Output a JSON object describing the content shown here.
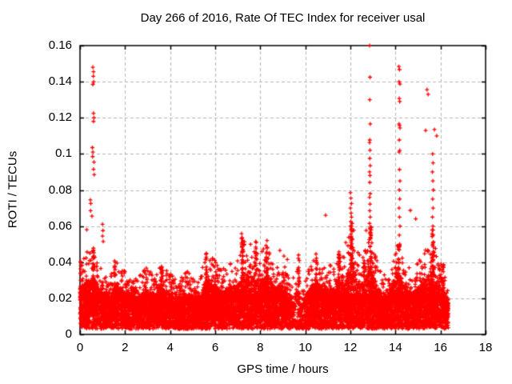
{
  "chart_data": {
    "type": "scatter",
    "title": "Day 266 of 2016, Rate Of TEC Index for receiver usal",
    "xlabel": "GPS time / hours",
    "ylabel": "ROTI / TECUs",
    "xlim": [
      0,
      18
    ],
    "ylim": [
      0,
      0.16
    ],
    "xticks": {
      "values": [
        0,
        2,
        4,
        6,
        8,
        10,
        12,
        14,
        16,
        18
      ],
      "labels": [
        "0",
        "2",
        "4",
        "6",
        "8",
        "10",
        "12",
        "14",
        "16",
        "18"
      ]
    },
    "yticks": {
      "values": [
        0,
        0.02,
        0.04,
        0.06,
        0.08,
        0.1,
        0.12,
        0.14,
        0.16
      ],
      "labels": [
        "0",
        "0.02",
        "0.04",
        "0.06",
        "0.08",
        "0.1",
        "0.12",
        "0.14",
        "0.16"
      ]
    },
    "grid": {
      "on": true,
      "style": "dashed",
      "color": "#b5b5b5"
    },
    "border_color": "#000000",
    "marker": "plus",
    "marker_color": "#ff0000",
    "marker_size": 5,
    "band": {
      "x_start": 0.0,
      "x_end": 16.35,
      "n_points": 13000,
      "y_floor": 0.003,
      "solid_top": 0.022,
      "seed": 20160266,
      "envelope": [
        [
          0.0,
          0.04
        ],
        [
          0.3,
          0.046
        ],
        [
          0.6,
          0.048
        ],
        [
          1.0,
          0.034
        ],
        [
          1.3,
          0.03
        ],
        [
          1.6,
          0.042
        ],
        [
          2.0,
          0.036
        ],
        [
          2.3,
          0.03
        ],
        [
          2.7,
          0.034
        ],
        [
          3.0,
          0.038
        ],
        [
          3.3,
          0.032
        ],
        [
          3.6,
          0.04
        ],
        [
          4.0,
          0.034
        ],
        [
          4.3,
          0.03
        ],
        [
          4.7,
          0.036
        ],
        [
          5.0,
          0.032
        ],
        [
          5.3,
          0.03
        ],
        [
          5.6,
          0.046
        ],
        [
          6.0,
          0.042
        ],
        [
          6.3,
          0.036
        ],
        [
          6.6,
          0.04
        ],
        [
          7.0,
          0.042
        ],
        [
          7.3,
          0.052
        ],
        [
          7.6,
          0.055
        ],
        [
          8.0,
          0.044
        ],
        [
          8.3,
          0.052
        ],
        [
          8.6,
          0.04
        ],
        [
          9.0,
          0.042
        ],
        [
          9.3,
          0.03
        ],
        [
          9.6,
          0.04
        ],
        [
          9.8,
          0.03
        ],
        [
          10.0,
          0.032
        ],
        [
          10.2,
          0.04
        ],
        [
          10.5,
          0.045
        ],
        [
          10.8,
          0.038
        ],
        [
          11.0,
          0.04
        ],
        [
          11.3,
          0.036
        ],
        [
          11.6,
          0.046
        ],
        [
          11.9,
          0.055
        ],
        [
          12.1,
          0.062
        ],
        [
          12.3,
          0.046
        ],
        [
          12.6,
          0.044
        ],
        [
          12.9,
          0.06
        ],
        [
          13.1,
          0.044
        ],
        [
          13.4,
          0.034
        ],
        [
          13.7,
          0.032
        ],
        [
          14.0,
          0.05
        ],
        [
          14.2,
          0.048
        ],
        [
          14.5,
          0.038
        ],
        [
          14.8,
          0.036
        ],
        [
          15.0,
          0.04
        ],
        [
          15.3,
          0.046
        ],
        [
          15.6,
          0.058
        ],
        [
          15.9,
          0.044
        ],
        [
          16.1,
          0.038
        ],
        [
          16.35,
          0.03
        ]
      ],
      "gap": {
        "x_start": 9.35,
        "x_end": 10.0,
        "keep": 0.3,
        "y_above": 0.008
      }
    },
    "streaks": [
      [
        0.6,
        0.048,
        60
      ],
      [
        1.55,
        0.042,
        35
      ],
      [
        3.6,
        0.04,
        30
      ],
      [
        5.6,
        0.046,
        35
      ],
      [
        6.0,
        0.042,
        30
      ],
      [
        7.2,
        0.056,
        40
      ],
      [
        7.8,
        0.051,
        30
      ],
      [
        8.3,
        0.052,
        35
      ],
      [
        9.7,
        0.044,
        25
      ],
      [
        10.5,
        0.045,
        30
      ],
      [
        11.5,
        0.046,
        30
      ],
      [
        12.05,
        0.062,
        45
      ],
      [
        12.6,
        0.045,
        30
      ],
      [
        12.9,
        0.06,
        50
      ],
      [
        13.1,
        0.044,
        25
      ],
      [
        14.15,
        0.05,
        45
      ],
      [
        15.65,
        0.058,
        50
      ],
      [
        16.1,
        0.04,
        25
      ]
    ],
    "outliers": [
      [
        0.57,
        0.148
      ],
      [
        0.6,
        0.1455
      ],
      [
        0.59,
        0.143
      ],
      [
        0.61,
        0.14
      ],
      [
        0.57,
        0.1385
      ],
      [
        0.6,
        0.1225
      ],
      [
        0.62,
        0.12
      ],
      [
        0.6,
        0.118
      ],
      [
        0.55,
        0.1035
      ],
      [
        0.57,
        0.101
      ],
      [
        0.56,
        0.0985
      ],
      [
        0.62,
        0.0955
      ],
      [
        0.6,
        0.0915
      ],
      [
        0.63,
        0.0885
      ],
      [
        0.46,
        0.0745
      ],
      [
        0.48,
        0.0725
      ],
      [
        0.47,
        0.0685
      ],
      [
        0.53,
        0.0655
      ],
      [
        0.3,
        0.058
      ],
      [
        1.0,
        0.061
      ],
      [
        1.02,
        0.0575
      ],
      [
        1.0,
        0.0545
      ],
      [
        1.03,
        0.0515
      ],
      [
        0.02,
        0.04
      ],
      [
        0.04,
        0.038
      ],
      [
        0.02,
        0.034
      ],
      [
        0.03,
        0.03
      ],
      [
        0.02,
        0.0265
      ],
      [
        0.05,
        0.024
      ],
      [
        7.17,
        0.0558
      ],
      [
        7.2,
        0.0536
      ],
      [
        7.8,
        0.0514
      ],
      [
        8.3,
        0.052
      ],
      [
        8.87,
        0.0465
      ],
      [
        9.05,
        0.0434
      ],
      [
        9.2,
        0.0415
      ],
      [
        9.7,
        0.044
      ],
      [
        10.9,
        0.066
      ],
      [
        12.7,
        0.0576
      ],
      [
        14.66,
        0.0687
      ],
      [
        14.9,
        0.064
      ],
      [
        12.0,
        0.0785
      ],
      [
        12.02,
        0.0755
      ],
      [
        12.05,
        0.0725
      ],
      [
        12.0,
        0.07
      ],
      [
        12.03,
        0.0672
      ],
      [
        12.05,
        0.065
      ],
      [
        12.02,
        0.0625
      ],
      [
        12.0,
        0.06
      ],
      [
        12.04,
        0.0578
      ],
      [
        12.02,
        0.0555
      ],
      [
        12.05,
        0.0532
      ],
      [
        12.03,
        0.051
      ],
      [
        12.85,
        0.16
      ],
      [
        12.87,
        0.1425
      ],
      [
        12.86,
        0.13
      ],
      [
        12.88,
        0.1166
      ],
      [
        12.86,
        0.1077
      ],
      [
        12.85,
        0.1063
      ],
      [
        12.87,
        0.102
      ],
      [
        12.86,
        0.0975
      ],
      [
        12.88,
        0.0935
      ],
      [
        12.85,
        0.09
      ],
      [
        12.87,
        0.088
      ],
      [
        12.86,
        0.0842
      ],
      [
        12.88,
        0.078
      ],
      [
        12.85,
        0.076
      ],
      [
        12.87,
        0.0722
      ],
      [
        12.86,
        0.0685
      ],
      [
        12.88,
        0.065
      ],
      [
        12.85,
        0.0615
      ],
      [
        12.87,
        0.0585
      ],
      [
        12.86,
        0.056
      ],
      [
        14.15,
        0.1484
      ],
      [
        14.18,
        0.1467
      ],
      [
        14.16,
        0.14
      ],
      [
        14.2,
        0.1387
      ],
      [
        14.17,
        0.1307
      ],
      [
        14.19,
        0.129
      ],
      [
        14.16,
        0.1166
      ],
      [
        14.18,
        0.1157
      ],
      [
        14.2,
        0.1144
      ],
      [
        14.17,
        0.1077
      ],
      [
        14.19,
        0.1019
      ],
      [
        14.16,
        0.101
      ],
      [
        14.18,
        0.0913
      ],
      [
        14.2,
        0.085
      ],
      [
        14.17,
        0.08
      ],
      [
        14.19,
        0.075
      ],
      [
        14.16,
        0.07
      ],
      [
        14.18,
        0.065
      ],
      [
        14.2,
        0.06
      ],
      [
        14.17,
        0.055
      ],
      [
        14.19,
        0.05
      ],
      [
        15.4,
        0.1356
      ],
      [
        15.45,
        0.133
      ],
      [
        15.34,
        0.113
      ],
      [
        15.73,
        0.1135
      ],
      [
        15.83,
        0.11
      ],
      [
        15.65,
        0.1
      ],
      [
        15.67,
        0.095
      ],
      [
        15.64,
        0.09
      ],
      [
        15.66,
        0.085
      ],
      [
        15.68,
        0.08
      ],
      [
        15.65,
        0.075
      ],
      [
        15.67,
        0.07
      ],
      [
        15.64,
        0.065
      ],
      [
        15.66,
        0.06
      ],
      [
        15.68,
        0.055
      ],
      [
        15.65,
        0.05
      ],
      [
        15.67,
        0.045
      ]
    ]
  }
}
